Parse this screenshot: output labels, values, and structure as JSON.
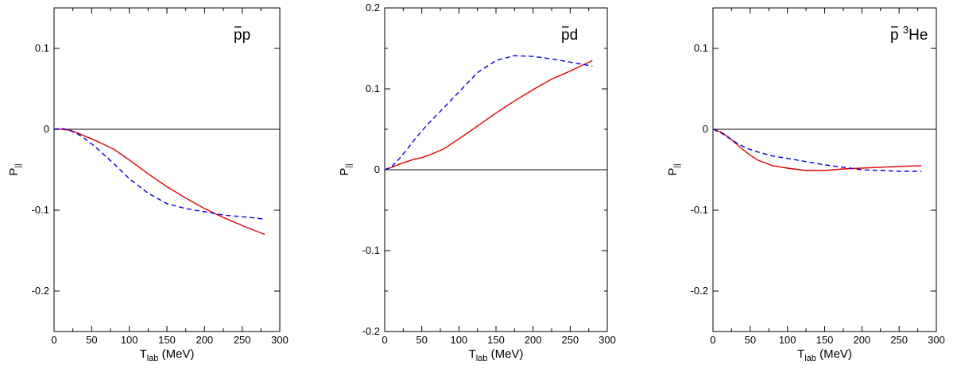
{
  "chart_data": [
    {
      "type": "line",
      "label_main": "p",
      "label_bar": "p",
      "label_sup": "",
      "label_tail": "p",
      "xlabel_main": "T",
      "xlabel_sub": "lab",
      "xlabel_unit": " (MeV)",
      "ylabel_main": "P",
      "ylabel_sub": "||",
      "xlim": [
        0,
        300
      ],
      "ylim": [
        -0.25,
        0.15
      ],
      "xticks": [
        0,
        50,
        100,
        150,
        200,
        250,
        300
      ],
      "xtick_labels": [
        "0",
        "50",
        "100",
        "150",
        "200",
        "250",
        "300"
      ],
      "yticks": [
        -0.2,
        -0.1,
        0,
        0.1
      ],
      "ytick_labels": [
        "-0.2",
        "-0.1",
        "0",
        "0.1"
      ],
      "zero_line": true,
      "series": [
        {
          "style": "solid",
          "color": "#e00000",
          "x": [
            0,
            10,
            20,
            30,
            40,
            50,
            60,
            80,
            100,
            125,
            150,
            175,
            200,
            225,
            250,
            280
          ],
          "y": [
            0,
            0,
            -0.001,
            -0.004,
            -0.008,
            -0.012,
            -0.016,
            -0.025,
            -0.038,
            -0.055,
            -0.071,
            -0.085,
            -0.098,
            -0.109,
            -0.119,
            -0.13
          ]
        },
        {
          "style": "dashed",
          "color": "#0000dd",
          "x": [
            0,
            10,
            20,
            30,
            40,
            50,
            60,
            80,
            100,
            125,
            150,
            175,
            200,
            225,
            250,
            280
          ],
          "y": [
            0,
            0.001,
            -0.001,
            -0.005,
            -0.011,
            -0.018,
            -0.026,
            -0.043,
            -0.061,
            -0.079,
            -0.092,
            -0.098,
            -0.102,
            -0.106,
            -0.108,
            -0.111
          ]
        }
      ]
    },
    {
      "type": "line",
      "label_main": "p",
      "label_bar": "p",
      "label_sup": "",
      "label_tail": "d",
      "xlabel_main": "T",
      "xlabel_sub": "lab",
      "xlabel_unit": " (MeV)",
      "ylabel_main": "P",
      "ylabel_sub": "||",
      "xlim": [
        0,
        300
      ],
      "ylim": [
        -0.2,
        0.2
      ],
      "xticks": [
        0,
        50,
        100,
        150,
        200,
        250,
        300
      ],
      "xtick_labels": [
        "0",
        "50",
        "100",
        "150",
        "200",
        "250",
        "300"
      ],
      "yticks": [
        -0.2,
        -0.1,
        0,
        0.1,
        0.2
      ],
      "ytick_labels": [
        "-0.2",
        "-0.1",
        "0",
        "0.1",
        "0.2"
      ],
      "zero_line": true,
      "series": [
        {
          "style": "solid",
          "color": "#e00000",
          "x": [
            0,
            10,
            20,
            30,
            40,
            50,
            60,
            80,
            100,
            125,
            150,
            175,
            200,
            225,
            250,
            280
          ],
          "y": [
            0,
            0.003,
            0.007,
            0.01,
            0.013,
            0.015,
            0.018,
            0.026,
            0.038,
            0.054,
            0.07,
            0.085,
            0.099,
            0.112,
            0.122,
            0.135
          ]
        },
        {
          "style": "dashed",
          "color": "#0000dd",
          "x": [
            0,
            10,
            20,
            30,
            40,
            50,
            60,
            80,
            100,
            125,
            150,
            175,
            200,
            225,
            250,
            280
          ],
          "y": [
            0,
            0.004,
            0.014,
            0.025,
            0.037,
            0.048,
            0.058,
            0.077,
            0.096,
            0.12,
            0.135,
            0.141,
            0.14,
            0.137,
            0.133,
            0.128
          ]
        }
      ]
    },
    {
      "type": "line",
      "label_main": "p",
      "label_bar": "p",
      "label_sup": "3",
      "label_tail": "He",
      "xlabel_main": "T",
      "xlabel_sub": "lab",
      "xlabel_unit": " (MeV)",
      "ylabel_main": "P",
      "ylabel_sub": "||",
      "xlim": [
        0,
        300
      ],
      "ylim": [
        -0.25,
        0.15
      ],
      "xticks": [
        0,
        50,
        100,
        150,
        200,
        250,
        300
      ],
      "xtick_labels": [
        "0",
        "50",
        "100",
        "150",
        "200",
        "250",
        "300"
      ],
      "yticks": [
        -0.2,
        -0.1,
        0,
        0.1
      ],
      "ytick_labels": [
        "-0.2",
        "-0.1",
        "0",
        "0.1"
      ],
      "zero_line": true,
      "series": [
        {
          "style": "solid",
          "color": "#e00000",
          "x": [
            0,
            10,
            20,
            30,
            40,
            50,
            60,
            80,
            100,
            125,
            150,
            175,
            200,
            225,
            250,
            280
          ],
          "y": [
            0,
            -0.003,
            -0.009,
            -0.017,
            -0.025,
            -0.032,
            -0.038,
            -0.045,
            -0.048,
            -0.051,
            -0.051,
            -0.049,
            -0.048,
            -0.047,
            -0.046,
            -0.045
          ]
        },
        {
          "style": "dashed",
          "color": "#0000dd",
          "x": [
            0,
            10,
            20,
            30,
            40,
            50,
            60,
            80,
            100,
            125,
            150,
            175,
            200,
            225,
            250,
            280
          ],
          "y": [
            0,
            -0.004,
            -0.01,
            -0.016,
            -0.021,
            -0.025,
            -0.028,
            -0.033,
            -0.036,
            -0.04,
            -0.044,
            -0.047,
            -0.05,
            -0.051,
            -0.052,
            -0.052
          ]
        }
      ]
    }
  ]
}
